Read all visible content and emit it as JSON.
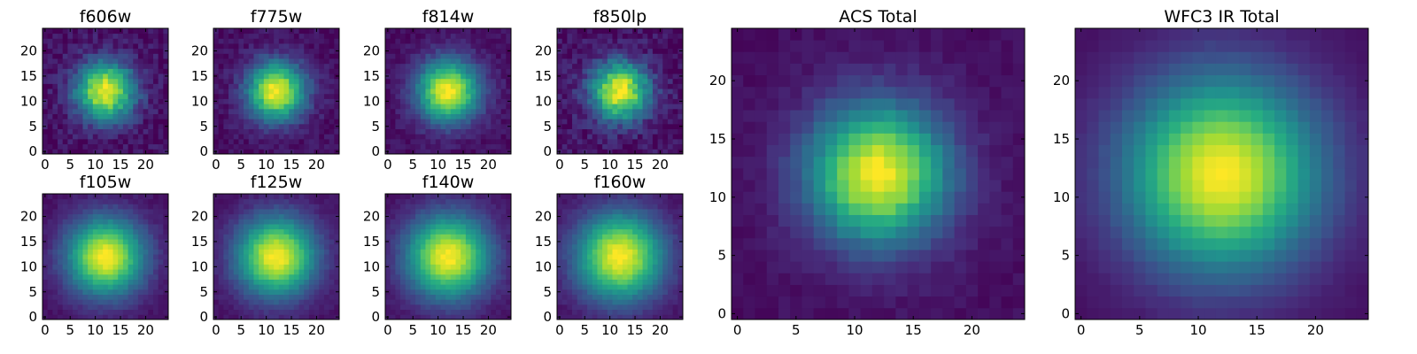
{
  "chart_data": [
    {
      "type": "heatmap",
      "title": "f606w",
      "noise": 0.08,
      "sigma": 3.0,
      "x_ticks": [
        0,
        5,
        10,
        15,
        20
      ],
      "y_ticks": [
        0,
        5,
        10,
        15,
        20
      ],
      "xlim": [
        0,
        25
      ],
      "ylim": [
        0,
        25
      ],
      "peak": [
        12,
        12
      ],
      "colormap": "viridis"
    },
    {
      "type": "heatmap",
      "title": "f775w",
      "noise": 0.06,
      "sigma": 3.0,
      "x_ticks": [
        0,
        5,
        10,
        15,
        20
      ],
      "y_ticks": [
        0,
        5,
        10,
        15,
        20
      ],
      "xlim": [
        0,
        25
      ],
      "ylim": [
        0,
        25
      ],
      "peak": [
        12,
        12
      ],
      "colormap": "viridis"
    },
    {
      "type": "heatmap",
      "title": "f814w",
      "noise": 0.05,
      "sigma": 3.2,
      "x_ticks": [
        0,
        5,
        10,
        15,
        20
      ],
      "y_ticks": [
        0,
        5,
        10,
        15,
        20
      ],
      "xlim": [
        0,
        25
      ],
      "ylim": [
        0,
        25
      ],
      "peak": [
        12,
        12
      ],
      "colormap": "viridis"
    },
    {
      "type": "heatmap",
      "title": "f850lp",
      "noise": 0.09,
      "sigma": 3.0,
      "x_ticks": [
        0,
        5,
        10,
        15,
        20
      ],
      "y_ticks": [
        0,
        5,
        10,
        15,
        20
      ],
      "xlim": [
        0,
        25
      ],
      "ylim": [
        0,
        25
      ],
      "peak": [
        12,
        12
      ],
      "colormap": "viridis"
    },
    {
      "type": "heatmap",
      "title": "f105w",
      "noise": 0.03,
      "sigma": 4.0,
      "x_ticks": [
        0,
        5,
        10,
        15,
        20
      ],
      "y_ticks": [
        0,
        5,
        10,
        15,
        20
      ],
      "xlim": [
        0,
        25
      ],
      "ylim": [
        0,
        25
      ],
      "peak": [
        12,
        12
      ],
      "colormap": "viridis"
    },
    {
      "type": "heatmap",
      "title": "f125w",
      "noise": 0.03,
      "sigma": 4.1,
      "x_ticks": [
        0,
        5,
        10,
        15,
        20
      ],
      "y_ticks": [
        0,
        5,
        10,
        15,
        20
      ],
      "xlim": [
        0,
        25
      ],
      "ylim": [
        0,
        25
      ],
      "peak": [
        12,
        12
      ],
      "colormap": "viridis"
    },
    {
      "type": "heatmap",
      "title": "f140w",
      "noise": 0.03,
      "sigma": 4.3,
      "x_ticks": [
        0,
        5,
        10,
        15,
        20
      ],
      "y_ticks": [
        0,
        5,
        10,
        15,
        20
      ],
      "xlim": [
        0,
        25
      ],
      "ylim": [
        0,
        25
      ],
      "peak": [
        12,
        12
      ],
      "colormap": "viridis"
    },
    {
      "type": "heatmap",
      "title": "f160w",
      "noise": 0.03,
      "sigma": 4.5,
      "x_ticks": [
        0,
        5,
        10,
        15,
        20
      ],
      "y_ticks": [
        0,
        5,
        10,
        15,
        20
      ],
      "xlim": [
        0,
        25
      ],
      "ylim": [
        0,
        25
      ],
      "peak": [
        12,
        12
      ],
      "colormap": "viridis"
    },
    {
      "type": "heatmap",
      "title": "ACS Total",
      "noise": 0.03,
      "sigma": 3.1,
      "x_ticks": [
        0,
        5,
        10,
        15,
        20
      ],
      "y_ticks": [
        0,
        5,
        10,
        15,
        20
      ],
      "xlim": [
        0,
        25
      ],
      "ylim": [
        0,
        25
      ],
      "peak": [
        12,
        12
      ],
      "colormap": "viridis"
    },
    {
      "type": "heatmap",
      "title": "WFC3 IR Total",
      "noise": 0.01,
      "sigma": 4.3,
      "x_ticks": [
        0,
        5,
        10,
        15,
        20
      ],
      "y_ticks": [
        0,
        5,
        10,
        15,
        20
      ],
      "xlim": [
        0,
        25
      ],
      "ylim": [
        0,
        25
      ],
      "peak": [
        12,
        12
      ],
      "colormap": "viridis"
    }
  ]
}
